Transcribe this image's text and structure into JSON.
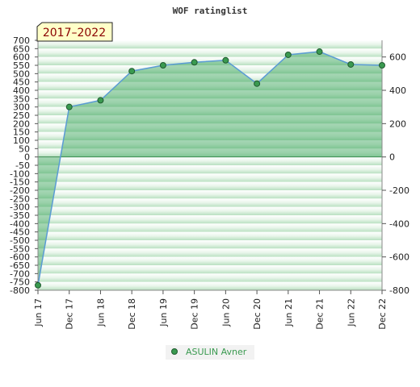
{
  "chart_data": {
    "type": "area",
    "title": "WOF ratinglist",
    "badge": "2017–2022",
    "x": [
      "Jun 17",
      "Dec 17",
      "Jun 18",
      "Dec 18",
      "Jun 19",
      "Dec 19",
      "Jun 20",
      "Dec 20",
      "Jun 21",
      "Dec 21",
      "Jun 22",
      "Dec 22"
    ],
    "series": [
      {
        "name": "ASULIN Avner",
        "values": [
          -770,
          300,
          340,
          515,
          550,
          568,
          580,
          440,
          613,
          632,
          555,
          550
        ]
      }
    ],
    "y_left": {
      "min": -800,
      "max": 700,
      "step": 50
    },
    "y_right": {
      "min": -800,
      "max": 700,
      "ticks": [
        600,
        400,
        200,
        0,
        -200,
        -400,
        -600,
        -800
      ]
    },
    "grid": "striped",
    "legend_position": "bottom-center",
    "colors": {
      "line": "#5a9bd4",
      "fill": "#3aa35a",
      "marker": "#3a9a50",
      "badge_bg": "#ffffc8",
      "legend": "#3a9a50"
    }
  }
}
